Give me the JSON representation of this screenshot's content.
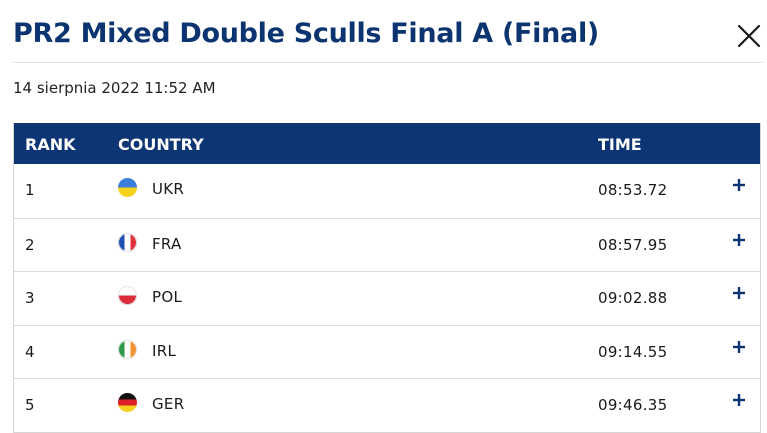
{
  "dialog": {
    "title": "PR2 Mixed Double Sculls Final A (Final)",
    "date": "14 sierpnia 2022 11:52 AM"
  },
  "table": {
    "headers": {
      "rank": "RANK",
      "country": "COUNTRY",
      "time": "TIME"
    },
    "rows": [
      {
        "rank": "1",
        "country": "UKR",
        "time": "08:53.72",
        "flag_colors": [
          "#3b7ddd",
          "#f6d21b"
        ],
        "flag_orientation": "horizontal"
      },
      {
        "rank": "2",
        "country": "FRA",
        "time": "08:57.95",
        "flag_colors": [
          "#1f4fb5",
          "#ffffff",
          "#e0313a"
        ],
        "flag_orientation": "vertical"
      },
      {
        "rank": "3",
        "country": "POL",
        "time": "09:02.88",
        "flag_colors": [
          "#ffffff",
          "#dc2b3b"
        ],
        "flag_orientation": "horizontal"
      },
      {
        "rank": "4",
        "country": "IRL",
        "time": "09:14.55",
        "flag_colors": [
          "#2f9a48",
          "#ffffff",
          "#f39230"
        ],
        "flag_orientation": "vertical"
      },
      {
        "rank": "5",
        "country": "GER",
        "time": "09:46.35",
        "flag_colors": [
          "#111111",
          "#dd1f26",
          "#f7cf1d"
        ],
        "flag_orientation": "horizontal"
      }
    ]
  },
  "icons": {
    "close": "close-icon",
    "expand": "plus-icon"
  },
  "colors": {
    "title": "#0b3470",
    "header_bg": "#0d3574",
    "header_text": "#ffffff",
    "expand_icon": "#0b3470"
  }
}
